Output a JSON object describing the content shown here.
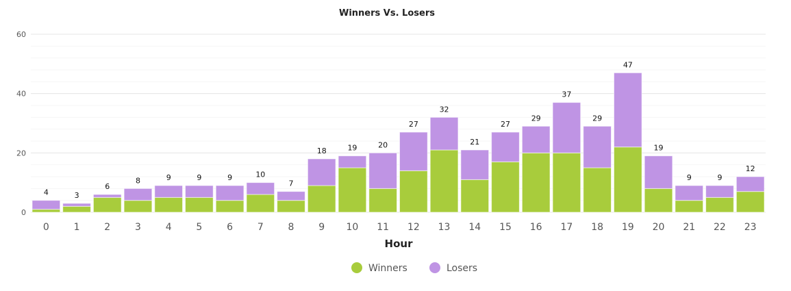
{
  "chart_data": {
    "type": "bar",
    "stacked": true,
    "title": "Winners Vs. Losers",
    "xlabel": "Hour",
    "ylabel": "",
    "ylim": [
      0,
      60
    ],
    "yticks": [
      "0",
      "20",
      "40",
      "60"
    ],
    "categories": [
      "0",
      "1",
      "2",
      "3",
      "4",
      "5",
      "6",
      "7",
      "8",
      "9",
      "10",
      "11",
      "12",
      "13",
      "14",
      "15",
      "16",
      "17",
      "18",
      "19",
      "20",
      "21",
      "22",
      "23"
    ],
    "series": [
      {
        "name": "Winners",
        "color": "#a8cc3c",
        "values": [
          1,
          2,
          5,
          4,
          5,
          5,
          4,
          6,
          4,
          9,
          15,
          8,
          14,
          21,
          11,
          17,
          20,
          20,
          15,
          22,
          8,
          4,
          5,
          7
        ]
      },
      {
        "name": "Losers",
        "color": "#bf94e4",
        "values": [
          3,
          1,
          1,
          4,
          4,
          4,
          5,
          4,
          3,
          9,
          4,
          12,
          13,
          11,
          10,
          10,
          9,
          17,
          14,
          25,
          11,
          5,
          4,
          5
        ]
      }
    ],
    "totals": [
      "4",
      "3",
      "6",
      "8",
      "9",
      "9",
      "9",
      "10",
      "7",
      "18",
      "19",
      "20",
      "27",
      "32",
      "21",
      "27",
      "29",
      "37",
      "29",
      "47",
      "19",
      "9",
      "9",
      "12"
    ],
    "legend_position": "bottom-center",
    "grid": true
  }
}
